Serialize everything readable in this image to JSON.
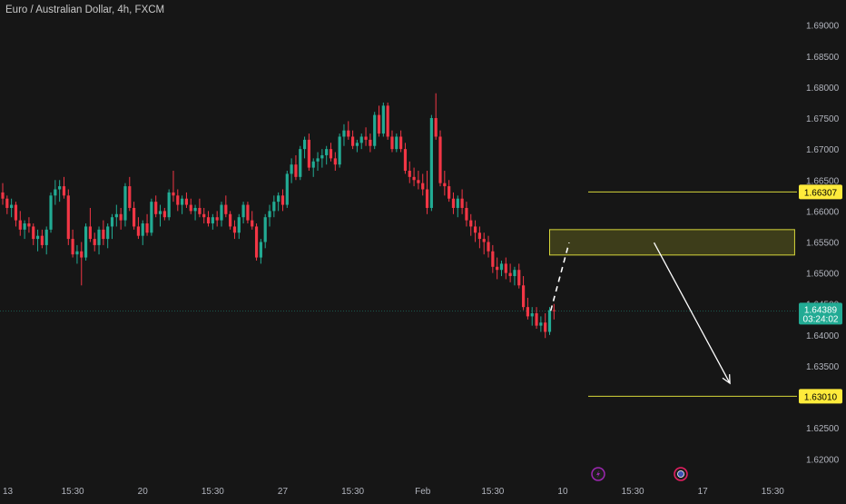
{
  "chart_data": {
    "type": "candlestick",
    "title": "Euro / Australian Dollar, 4h, FXCM",
    "ylim": [
      1.618,
      1.692
    ],
    "y_ticks": [
      {
        "value": 1.69,
        "label": "1.69000"
      },
      {
        "value": 1.685,
        "label": "1.68500"
      },
      {
        "value": 1.68,
        "label": "1.68000"
      },
      {
        "value": 1.675,
        "label": "1.67500"
      },
      {
        "value": 1.67,
        "label": "1.67000"
      },
      {
        "value": 1.665,
        "label": "1.66500"
      },
      {
        "value": 1.66,
        "label": "1.66000"
      },
      {
        "value": 1.655,
        "label": "1.65500"
      },
      {
        "value": 1.65,
        "label": "1.65000"
      },
      {
        "value": 1.645,
        "label": "1.64500"
      },
      {
        "value": 1.64,
        "label": "1.64000"
      },
      {
        "value": 1.635,
        "label": "1.63500"
      },
      {
        "value": 1.63,
        "label": "1.63000"
      },
      {
        "value": 1.625,
        "label": "1.62500"
      },
      {
        "value": 1.62,
        "label": "1.62000"
      }
    ],
    "x_ticks": [
      {
        "index": 0,
        "label": "13"
      },
      {
        "index": 16,
        "label": "15:30"
      },
      {
        "index": 32,
        "label": "20"
      },
      {
        "index": 48,
        "label": "15:30"
      },
      {
        "index": 64,
        "label": "27"
      },
      {
        "index": 80,
        "label": "15:30"
      },
      {
        "index": 96,
        "label": "Feb"
      },
      {
        "index": 112,
        "label": "15:30"
      },
      {
        "index": 128,
        "label": "10"
      },
      {
        "index": 144,
        "label": "15:30"
      },
      {
        "index": 160,
        "label": "17"
      },
      {
        "index": 176,
        "label": "15:30"
      }
    ],
    "candles": [
      [
        1.663,
        1.6645,
        1.661,
        1.662
      ],
      [
        1.662,
        1.6625,
        1.6595,
        1.6605
      ],
      [
        1.6605,
        1.662,
        1.659,
        1.661
      ],
      [
        1.661,
        1.6615,
        1.6575,
        1.6585
      ],
      [
        1.6585,
        1.66,
        1.656,
        1.657
      ],
      [
        1.657,
        1.6585,
        1.6555,
        1.658
      ],
      [
        1.658,
        1.659,
        1.6565,
        1.6575
      ],
      [
        1.6575,
        1.658,
        1.6545,
        1.6555
      ],
      [
        1.6555,
        1.657,
        1.6535,
        1.656
      ],
      [
        1.656,
        1.657,
        1.654,
        1.6545
      ],
      [
        1.6545,
        1.6575,
        1.653,
        1.657
      ],
      [
        1.657,
        1.663,
        1.6565,
        1.6625
      ],
      [
        1.6625,
        1.665,
        1.661,
        1.6635
      ],
      [
        1.6635,
        1.665,
        1.6615,
        1.664
      ],
      [
        1.664,
        1.6655,
        1.662,
        1.6625
      ],
      [
        1.6625,
        1.6635,
        1.6545,
        1.6555
      ],
      [
        1.6555,
        1.657,
        1.6525,
        1.653
      ],
      [
        1.653,
        1.6545,
        1.6515,
        1.6535
      ],
      [
        1.6535,
        1.655,
        1.648,
        1.6525
      ],
      [
        1.6525,
        1.658,
        1.652,
        1.6575
      ],
      [
        1.6575,
        1.6605,
        1.655,
        1.6555
      ],
      [
        1.6555,
        1.6565,
        1.6535,
        1.6545
      ],
      [
        1.6545,
        1.6575,
        1.653,
        1.657
      ],
      [
        1.657,
        1.6585,
        1.6545,
        1.6555
      ],
      [
        1.6555,
        1.658,
        1.654,
        1.6575
      ],
      [
        1.6575,
        1.6595,
        1.6555,
        1.659
      ],
      [
        1.659,
        1.661,
        1.6575,
        1.6595
      ],
      [
        1.6595,
        1.6605,
        1.657,
        1.6585
      ],
      [
        1.6585,
        1.6645,
        1.6575,
        1.664
      ],
      [
        1.664,
        1.6655,
        1.66,
        1.6605
      ],
      [
        1.6605,
        1.6615,
        1.657,
        1.6575
      ],
      [
        1.6575,
        1.659,
        1.6555,
        1.656
      ],
      [
        1.656,
        1.6585,
        1.6545,
        1.658
      ],
      [
        1.658,
        1.6595,
        1.656,
        1.6565
      ],
      [
        1.6565,
        1.662,
        1.656,
        1.6615
      ],
      [
        1.6615,
        1.6625,
        1.659,
        1.6595
      ],
      [
        1.6595,
        1.661,
        1.6575,
        1.66
      ],
      [
        1.66,
        1.6605,
        1.6585,
        1.659
      ],
      [
        1.659,
        1.6635,
        1.6585,
        1.663
      ],
      [
        1.663,
        1.6665,
        1.6615,
        1.6625
      ],
      [
        1.6625,
        1.6635,
        1.66,
        1.661
      ],
      [
        1.661,
        1.6625,
        1.6595,
        1.662
      ],
      [
        1.662,
        1.663,
        1.6605,
        1.661
      ],
      [
        1.661,
        1.662,
        1.6595,
        1.66
      ],
      [
        1.66,
        1.661,
        1.6585,
        1.6605
      ],
      [
        1.6605,
        1.662,
        1.659,
        1.6595
      ],
      [
        1.6595,
        1.6605,
        1.658,
        1.659
      ],
      [
        1.659,
        1.66,
        1.6575,
        1.658
      ],
      [
        1.658,
        1.6595,
        1.657,
        1.659
      ],
      [
        1.659,
        1.66,
        1.6575,
        1.6585
      ],
      [
        1.6585,
        1.6615,
        1.6575,
        1.661
      ],
      [
        1.661,
        1.6625,
        1.659,
        1.6595
      ],
      [
        1.6595,
        1.66,
        1.657,
        1.6575
      ],
      [
        1.6575,
        1.6585,
        1.6555,
        1.6565
      ],
      [
        1.6565,
        1.6595,
        1.6555,
        1.659
      ],
      [
        1.659,
        1.6615,
        1.658,
        1.661
      ],
      [
        1.661,
        1.6615,
        1.658,
        1.6585
      ],
      [
        1.6585,
        1.66,
        1.657,
        1.6575
      ],
      [
        1.6575,
        1.658,
        1.652,
        1.6525
      ],
      [
        1.6525,
        1.6555,
        1.6515,
        1.655
      ],
      [
        1.655,
        1.6595,
        1.654,
        1.659
      ],
      [
        1.659,
        1.661,
        1.6575,
        1.66
      ],
      [
        1.66,
        1.6625,
        1.659,
        1.6615
      ],
      [
        1.6615,
        1.663,
        1.66,
        1.6625
      ],
      [
        1.6625,
        1.6635,
        1.66,
        1.661
      ],
      [
        1.661,
        1.6665,
        1.6605,
        1.666
      ],
      [
        1.666,
        1.6685,
        1.6645,
        1.6675
      ],
      [
        1.6675,
        1.669,
        1.665,
        1.6655
      ],
      [
        1.6655,
        1.6705,
        1.665,
        1.67
      ],
      [
        1.67,
        1.672,
        1.6685,
        1.6715
      ],
      [
        1.6715,
        1.6725,
        1.6665,
        1.667
      ],
      [
        1.667,
        1.6685,
        1.6655,
        1.668
      ],
      [
        1.668,
        1.6695,
        1.6665,
        1.6685
      ],
      [
        1.6685,
        1.67,
        1.667,
        1.669
      ],
      [
        1.669,
        1.6705,
        1.6675,
        1.67
      ],
      [
        1.67,
        1.671,
        1.668,
        1.6685
      ],
      [
        1.6685,
        1.6695,
        1.6665,
        1.6675
      ],
      [
        1.6675,
        1.6725,
        1.667,
        1.672
      ],
      [
        1.672,
        1.674,
        1.6705,
        1.673
      ],
      [
        1.673,
        1.6745,
        1.6715,
        1.672
      ],
      [
        1.672,
        1.673,
        1.67,
        1.6705
      ],
      [
        1.6705,
        1.6715,
        1.6695,
        1.671
      ],
      [
        1.671,
        1.6725,
        1.67,
        1.672
      ],
      [
        1.672,
        1.6735,
        1.6705,
        1.6715
      ],
      [
        1.6715,
        1.6725,
        1.6695,
        1.6705
      ],
      [
        1.6705,
        1.676,
        1.67,
        1.6755
      ],
      [
        1.6755,
        1.677,
        1.672,
        1.6725
      ],
      [
        1.6725,
        1.6775,
        1.672,
        1.677
      ],
      [
        1.677,
        1.6775,
        1.6715,
        1.672
      ],
      [
        1.672,
        1.673,
        1.6695,
        1.67
      ],
      [
        1.67,
        1.6725,
        1.6695,
        1.672
      ],
      [
        1.672,
        1.673,
        1.6695,
        1.67
      ],
      [
        1.67,
        1.671,
        1.666,
        1.6665
      ],
      [
        1.6665,
        1.668,
        1.6645,
        1.6655
      ],
      [
        1.6655,
        1.667,
        1.664,
        1.665
      ],
      [
        1.665,
        1.6665,
        1.6635,
        1.6645
      ],
      [
        1.6645,
        1.666,
        1.6625,
        1.6635
      ],
      [
        1.6635,
        1.6665,
        1.6595,
        1.6605
      ],
      [
        1.6605,
        1.6755,
        1.66,
        1.675
      ],
      [
        1.675,
        1.679,
        1.6715,
        1.672
      ],
      [
        1.672,
        1.673,
        1.664,
        1.6645
      ],
      [
        1.6645,
        1.6665,
        1.6625,
        1.664
      ],
      [
        1.664,
        1.665,
        1.6615,
        1.662
      ],
      [
        1.662,
        1.663,
        1.6595,
        1.6605
      ],
      [
        1.6605,
        1.6625,
        1.659,
        1.662
      ],
      [
        1.662,
        1.6635,
        1.6595,
        1.6605
      ],
      [
        1.6605,
        1.6615,
        1.6575,
        1.6585
      ],
      [
        1.6585,
        1.6595,
        1.656,
        1.6575
      ],
      [
        1.6575,
        1.6585,
        1.655,
        1.6565
      ],
      [
        1.6565,
        1.6575,
        1.654,
        1.6555
      ],
      [
        1.6555,
        1.6565,
        1.653,
        1.655
      ],
      [
        1.655,
        1.656,
        1.6525,
        1.6535
      ],
      [
        1.6535,
        1.6545,
        1.65,
        1.651
      ],
      [
        1.651,
        1.6525,
        1.649,
        1.6505
      ],
      [
        1.6505,
        1.652,
        1.6495,
        1.6515
      ],
      [
        1.6515,
        1.6525,
        1.649,
        1.65
      ],
      [
        1.65,
        1.6515,
        1.6485,
        1.6495
      ],
      [
        1.6495,
        1.651,
        1.648,
        1.6505
      ],
      [
        1.6505,
        1.6515,
        1.6475,
        1.648
      ],
      [
        1.648,
        1.6495,
        1.644,
        1.6445
      ],
      [
        1.6445,
        1.646,
        1.6425,
        1.643
      ],
      [
        1.643,
        1.6445,
        1.6415,
        1.6435
      ],
      [
        1.6435,
        1.6445,
        1.641,
        1.6415
      ],
      [
        1.6415,
        1.643,
        1.6405,
        1.642
      ],
      [
        1.642,
        1.6435,
        1.6395,
        1.6405
      ],
      [
        1.6405,
        1.6445,
        1.64,
        1.644
      ],
      [
        1.644,
        1.645,
        1.6425,
        1.6439
      ]
    ],
    "projection": [
      [
        124,
        1.6439
      ],
      [
        128,
        1.6549
      ]
    ],
    "forecast_arrow": {
      "from": [
        136,
        1.6549
      ],
      "to": [
        155,
        1.6322
      ]
    },
    "zone": {
      "from_index": 125,
      "to_index": 181,
      "low": 1.6529,
      "high": 1.657
    },
    "levels": [
      {
        "value": 1.66307,
        "label": "1.66307"
      },
      {
        "value": 1.6301,
        "label": "1.63010"
      }
    ],
    "current_price": {
      "value": 1.64389,
      "label": "1.64389",
      "countdown": "03:24:02"
    },
    "colors": {
      "background": "#161616",
      "up": "#22ab94",
      "down": "#f23645",
      "axis_text": "#b2b5be",
      "level_line": "#d6d63a",
      "level_badge": "#ffeb3b",
      "zone_fill": "rgba(200,200,40,0.22)",
      "price_badge": "#22ab94"
    },
    "markers": [
      {
        "index": 127,
        "icon": "lightning-icon",
        "color": "#9c27b0"
      },
      {
        "index": 146,
        "icon": "flag-icon",
        "color": "#e91e63"
      }
    ]
  }
}
